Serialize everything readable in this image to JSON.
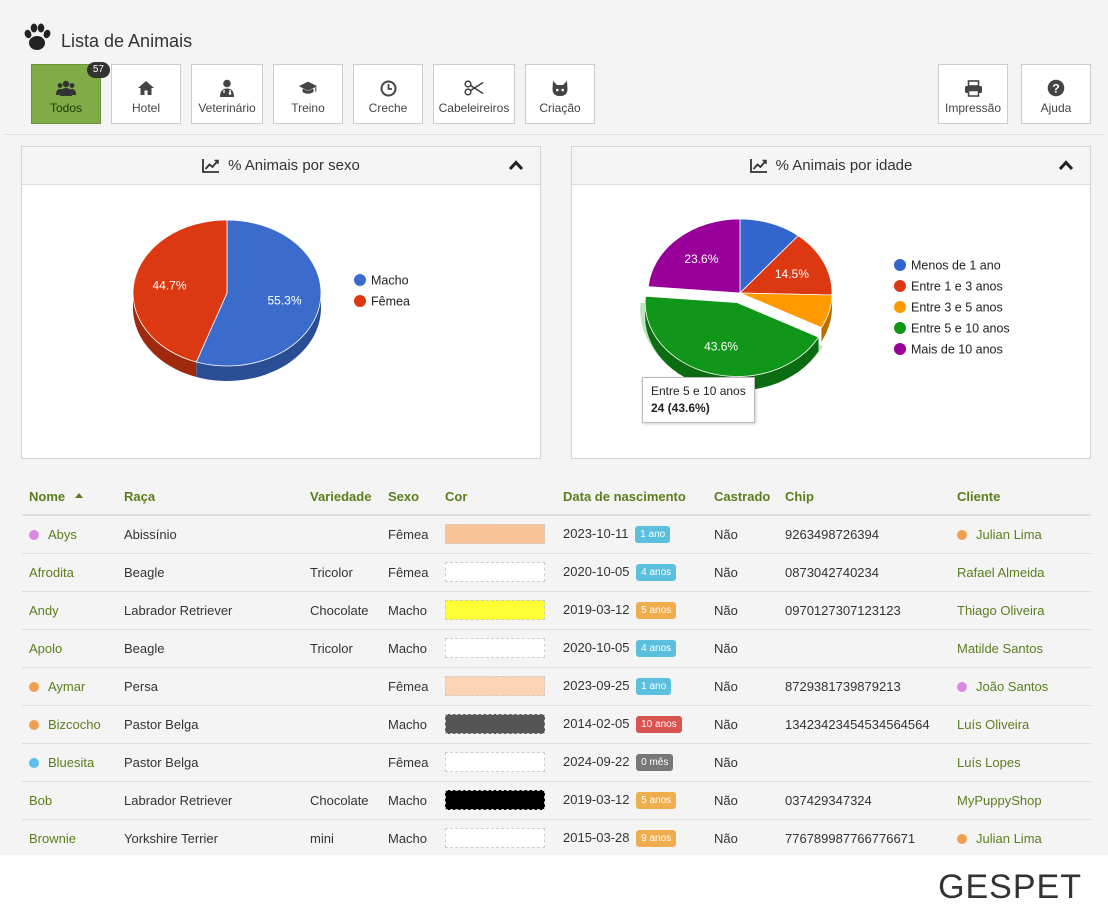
{
  "page": {
    "title": "Lista de Animais"
  },
  "toolbar": {
    "buttons": [
      {
        "label": "Todos",
        "icon": "users-icon",
        "badge": "57",
        "active": true
      },
      {
        "label": "Hotel",
        "icon": "home-icon"
      },
      {
        "label": "Veterinário",
        "icon": "doctor-icon"
      },
      {
        "label": "Treino",
        "icon": "graduation-cap-icon"
      },
      {
        "label": "Creche",
        "icon": "clock-icon"
      },
      {
        "label": "Cabeleireiros",
        "icon": "scissors-icon"
      },
      {
        "label": "Criação",
        "icon": "cat-icon"
      }
    ],
    "right_buttons": [
      {
        "label": "Impressão",
        "icon": "printer-icon"
      },
      {
        "label": "Ajuda",
        "icon": "help-icon"
      }
    ]
  },
  "colors": {
    "accent": "#7fac47",
    "link": "#5b7e1d",
    "badge_blue": "#5bc0de",
    "badge_orange": "#f0ad4e",
    "badge_red": "#d9534f",
    "badge_gray": "#777777"
  },
  "panels": {
    "sex": {
      "title": "% Animais por sexo"
    },
    "age": {
      "title": "% Animais por idade"
    }
  },
  "chart_data": [
    {
      "type": "pie",
      "title": "% Animais por sexo",
      "legend": "right",
      "slices": [
        {
          "label": "Macho",
          "value": 55.3,
          "display": "55.3%",
          "color": "#3b6ccc"
        },
        {
          "label": "Fêmea",
          "value": 44.7,
          "display": "44.7%",
          "color": "#dc3912"
        }
      ]
    },
    {
      "type": "pie",
      "title": "% Animais por idade",
      "legend": "right",
      "slices": [
        {
          "label": "Menos de 1 ano",
          "value": 10.9,
          "display": "",
          "color": "#3366cc"
        },
        {
          "label": "Entre 1 e 3 anos",
          "value": 14.5,
          "display": "14.5%",
          "color": "#dc3912"
        },
        {
          "label": "Entre 3 e 5 anos",
          "value": 7.3,
          "display": "",
          "color": "#ff9900"
        },
        {
          "label": "Entre 5 e 10 anos",
          "value": 43.6,
          "display": "43.6%",
          "color": "#109618"
        },
        {
          "label": "Mais de 10 anos",
          "value": 23.6,
          "display": "23.6%",
          "color": "#990099"
        }
      ],
      "tooltip": {
        "label": "Entre 5 e 10 anos",
        "value": "24 (43.6%)"
      }
    }
  ],
  "table": {
    "columns": [
      "Nome",
      "Raça",
      "Variedade",
      "Sexo",
      "Cor",
      "Data de nascimento",
      "Castrado",
      "Chip",
      "Cliente"
    ],
    "rows": [
      {
        "nome": "Abys",
        "dot": "#d88be0",
        "raca": "Abissínio",
        "variedade": "",
        "sexo": "Fêmea",
        "cor": "#f9c498",
        "data": "2023-10-11",
        "idade": "1 ano",
        "idade_color": "#5bc0de",
        "castrado": "Não",
        "chip": "9263498726394",
        "cliente": "Julian Lima",
        "cliente_dot": "#f0a050"
      },
      {
        "nome": "Afrodita",
        "dot": "",
        "raca": "Beagle",
        "variedade": "Tricolor",
        "sexo": "Fêmea",
        "cor": "#ffffff",
        "data": "2020-10-05",
        "idade": "4 anos",
        "idade_color": "#5bc0de",
        "castrado": "Não",
        "chip": "0873042740234",
        "cliente": "Rafael Almeida",
        "cliente_dot": ""
      },
      {
        "nome": "Andy",
        "dot": "",
        "raca": "Labrador Retriever",
        "variedade": "Chocolate",
        "sexo": "Macho",
        "cor": "#ffff33",
        "data": "2019-03-12",
        "idade": "5 anos",
        "idade_color": "#f0ad4e",
        "castrado": "Não",
        "chip": "0970127307123123",
        "cliente": "Thiago Oliveira",
        "cliente_dot": ""
      },
      {
        "nome": "Apolo",
        "dot": "",
        "raca": "Beagle",
        "variedade": "Tricolor",
        "sexo": "Macho",
        "cor": "#ffffff",
        "data": "2020-10-05",
        "idade": "4 anos",
        "idade_color": "#5bc0de",
        "castrado": "Não",
        "chip": "",
        "cliente": "Matilde Santos",
        "cliente_dot": ""
      },
      {
        "nome": "Aymar",
        "dot": "#f0a050",
        "raca": "Persa",
        "variedade": "",
        "sexo": "Fêmea",
        "cor": "#fcd3b5",
        "data": "2023-09-25",
        "idade": "1 ano",
        "idade_color": "#5bc0de",
        "castrado": "Não",
        "chip": "8729381739879213",
        "cliente": "João Santos",
        "cliente_dot": "#d88be0"
      },
      {
        "nome": "Bizcocho",
        "dot": "#f0a050",
        "raca": "Pastor Belga",
        "variedade": "",
        "sexo": "Macho",
        "cor": "#555555",
        "data": "2014-02-05",
        "idade": "10 anos",
        "idade_color": "#d9534f",
        "castrado": "Não",
        "chip": "13423423454534564564",
        "cliente": "Luís Oliveira",
        "cliente_dot": ""
      },
      {
        "nome": "Bluesita",
        "dot": "#5bc0f0",
        "raca": "Pastor Belga",
        "variedade": "",
        "sexo": "Fêmea",
        "cor": "#ffffff",
        "data": "2024-09-22",
        "idade": "0 mês",
        "idade_color": "#777777",
        "castrado": "Não",
        "chip": "",
        "cliente": "Luís Lopes",
        "cliente_dot": ""
      },
      {
        "nome": "Bob",
        "dot": "",
        "raca": "Labrador Retriever",
        "variedade": "Chocolate",
        "sexo": "Macho",
        "cor": "#000000",
        "data": "2019-03-12",
        "idade": "5 anos",
        "idade_color": "#f0ad4e",
        "castrado": "Não",
        "chip": "037429347324",
        "cliente": "MyPuppyShop",
        "cliente_dot": ""
      },
      {
        "nome": "Brownie",
        "dot": "",
        "raca": "Yorkshire Terrier",
        "variedade": "mini",
        "sexo": "Macho",
        "cor": "#ffffff",
        "data": "2015-03-28",
        "idade": "9 anos",
        "idade_color": "#f0ad4e",
        "castrado": "Não",
        "chip": "776789987766776671",
        "cliente": "Julian Lima",
        "cliente_dot": "#f0a050"
      }
    ]
  },
  "footer": {
    "logo": "GESPET"
  }
}
